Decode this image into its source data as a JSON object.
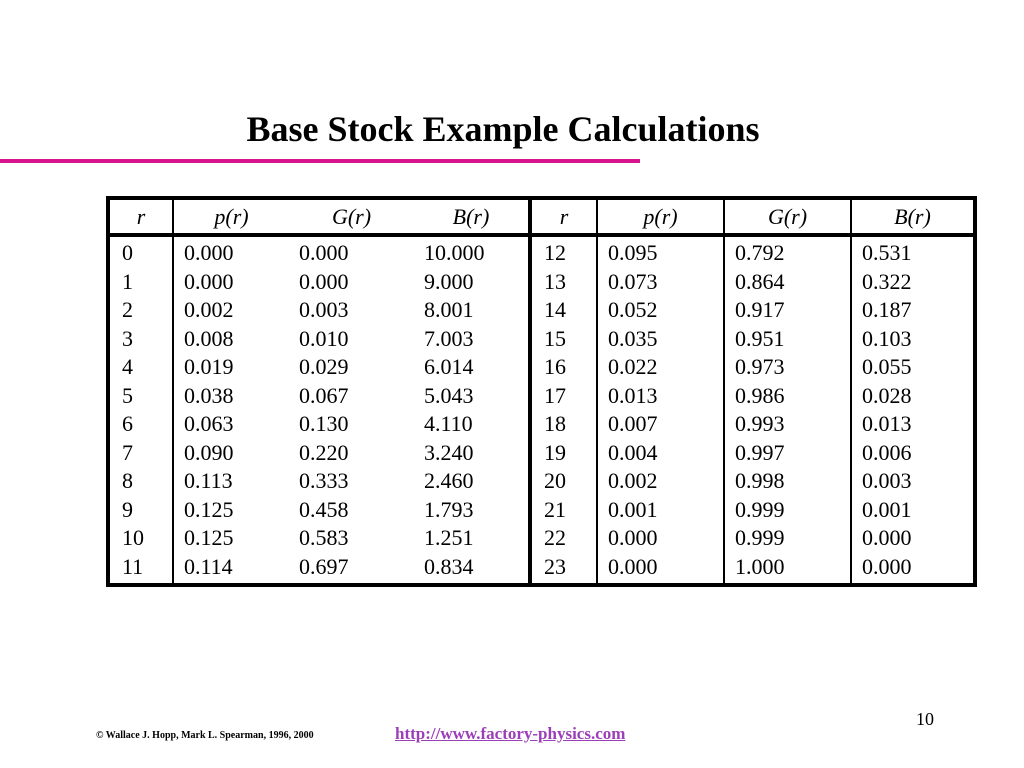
{
  "title": "Base Stock Example Calculations",
  "accent_color": "#d6158c",
  "link_color": "#9b3fb8",
  "table": {
    "headers": [
      "r",
      "p(r)",
      "G(r)",
      "B(r)",
      "r",
      "p(r)",
      "G(r)",
      "B(r)"
    ],
    "rows": [
      [
        "0",
        "0.000",
        "0.000",
        "10.000",
        "12",
        "0.095",
        "0.792",
        "0.531"
      ],
      [
        "1",
        "0.000",
        "0.000",
        "9.000",
        "13",
        "0.073",
        "0.864",
        "0.322"
      ],
      [
        "2",
        "0.002",
        "0.003",
        "8.001",
        "14",
        "0.052",
        "0.917",
        "0.187"
      ],
      [
        "3",
        "0.008",
        "0.010",
        "7.003",
        "15",
        "0.035",
        "0.951",
        "0.103"
      ],
      [
        "4",
        "0.019",
        "0.029",
        "6.014",
        "16",
        "0.022",
        "0.973",
        "0.055"
      ],
      [
        "5",
        "0.038",
        "0.067",
        "5.043",
        "17",
        "0.013",
        "0.986",
        "0.028"
      ],
      [
        "6",
        "0.063",
        "0.130",
        "4.110",
        "18",
        "0.007",
        "0.993",
        "0.013"
      ],
      [
        "7",
        "0.090",
        "0.220",
        "3.240",
        "19",
        "0.004",
        "0.997",
        "0.006"
      ],
      [
        "8",
        "0.113",
        "0.333",
        "2.460",
        "20",
        "0.002",
        "0.998",
        "0.003"
      ],
      [
        "9",
        "0.125",
        "0.458",
        "1.793",
        "21",
        "0.001",
        "0.999",
        "0.001"
      ],
      [
        "10",
        "0.125",
        "0.583",
        "1.251",
        "22",
        "0.000",
        "0.999",
        "0.000"
      ],
      [
        "11",
        "0.114",
        "0.697",
        "0.834",
        "23",
        "0.000",
        "1.000",
        "0.000"
      ]
    ]
  },
  "footer": {
    "page_number": "10",
    "copyright": "© Wallace J. Hopp, Mark L. Spearman, 1996, 2000",
    "url": "http://www.factory-physics.com"
  }
}
